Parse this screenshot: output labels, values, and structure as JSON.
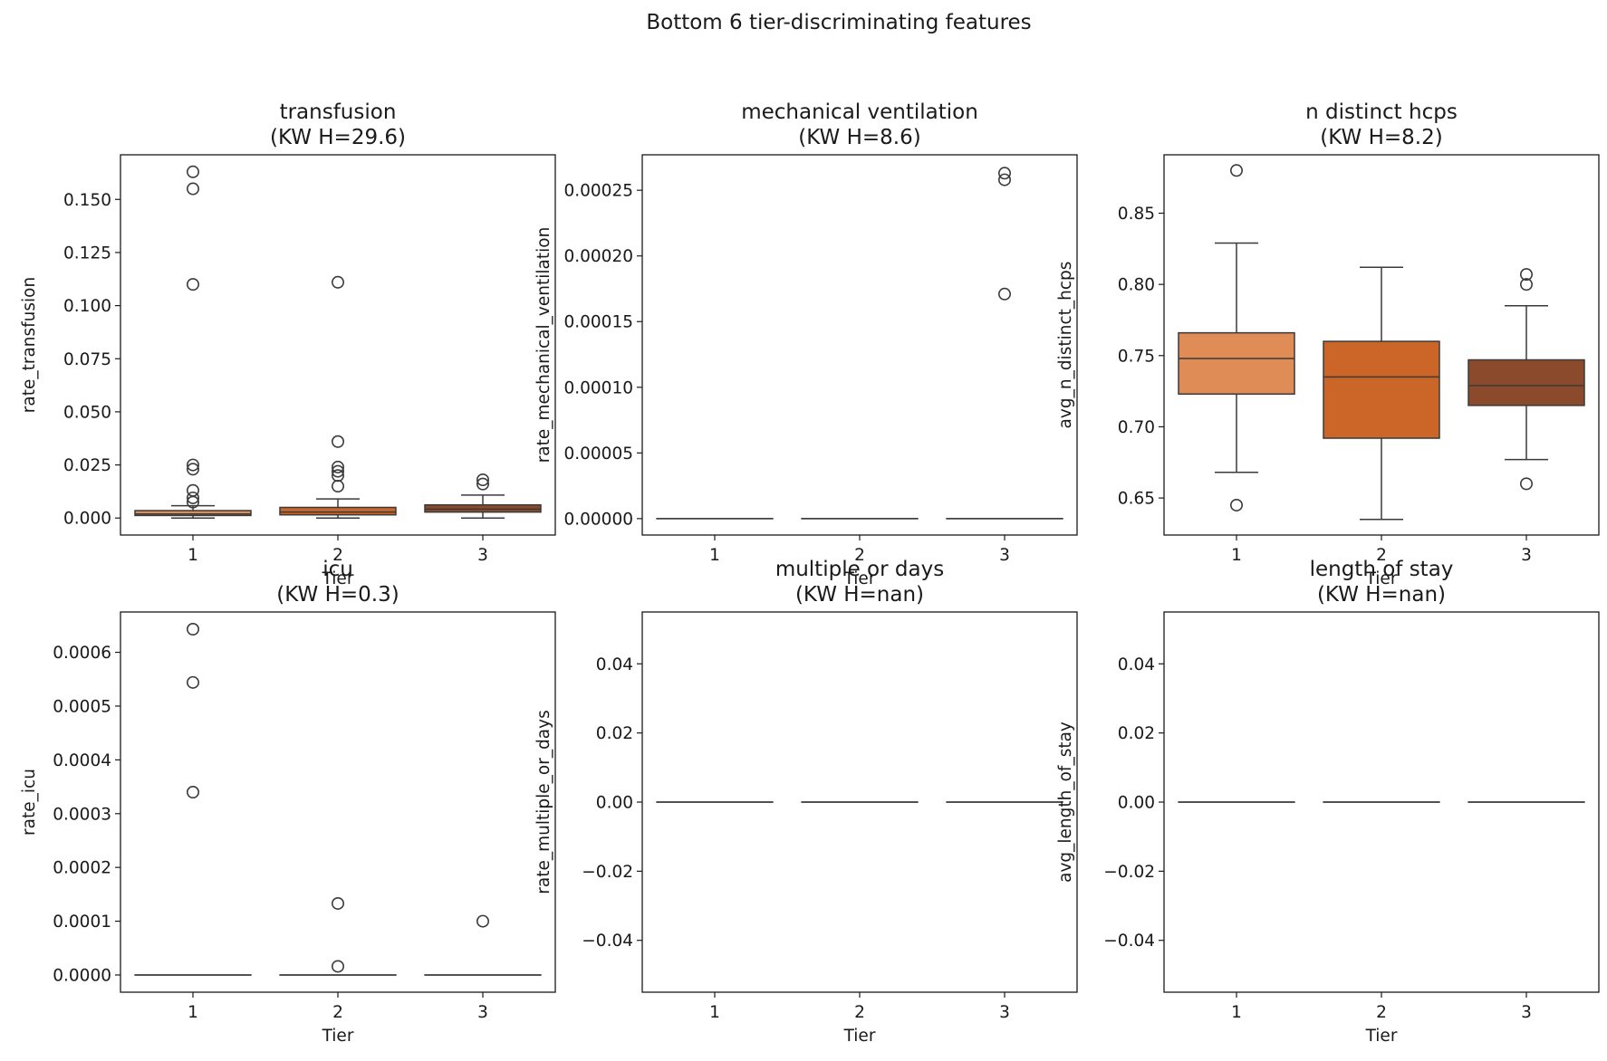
{
  "chart_data": {
    "suptitle": "Bottom 6 tier-discriminating features",
    "type": "boxplot",
    "colors": {
      "tier1": "#e08c56",
      "tier2": "#cc6628",
      "tier3": "#8b4a2b",
      "edge": "#3a3a3a",
      "axis": "#1a1a1a"
    },
    "panels": [
      {
        "title": "transfusion",
        "subtitle": "(KW H=29.6)",
        "xlabel": "Tier",
        "ylabel": "rate_transfusion",
        "ylim": [
          -0.008,
          0.171
        ],
        "yticks": [
          0.0,
          0.025,
          0.05,
          0.075,
          0.1,
          0.125,
          0.15
        ],
        "ytick_labels": [
          "0.000",
          "0.025",
          "0.050",
          "0.075",
          "0.100",
          "0.125",
          "0.150"
        ],
        "categories": [
          "1",
          "2",
          "3"
        ],
        "boxes": [
          {
            "tier": "1",
            "q1": 0.0012,
            "median": 0.0019,
            "q3": 0.0035,
            "whisker_low": 0.0,
            "whisker_high": 0.0058,
            "outliers": [
              0.163,
              0.155,
              0.11,
              0.025,
              0.023,
              0.013,
              0.0095,
              0.0075
            ]
          },
          {
            "tier": "2",
            "q1": 0.0015,
            "median": 0.0028,
            "q3": 0.005,
            "whisker_low": 0.0,
            "whisker_high": 0.009,
            "outliers": [
              0.111,
              0.036,
              0.024,
              0.022,
              0.02,
              0.015
            ]
          },
          {
            "tier": "3",
            "q1": 0.0028,
            "median": 0.0042,
            "q3": 0.0062,
            "whisker_low": 0.0,
            "whisker_high": 0.0108,
            "outliers": [
              0.018,
              0.016
            ]
          }
        ]
      },
      {
        "title": "mechanical ventilation",
        "subtitle": "(KW H=8.6)",
        "xlabel": "Tier",
        "ylabel": "rate_mechanical_ventilation",
        "ylim": [
          -1.25e-05,
          0.000277
        ],
        "yticks": [
          0.0,
          5e-05,
          0.0001,
          0.00015,
          0.0002,
          0.00025
        ],
        "ytick_labels": [
          "0.00000",
          "0.00005",
          "0.00010",
          "0.00015",
          "0.00020",
          "0.00025"
        ],
        "categories": [
          "1",
          "2",
          "3"
        ],
        "boxes": [
          {
            "tier": "1",
            "q1": 0,
            "median": 0,
            "q3": 0,
            "whisker_low": 0,
            "whisker_high": 0,
            "outliers": []
          },
          {
            "tier": "2",
            "q1": 0,
            "median": 0,
            "q3": 0,
            "whisker_low": 0,
            "whisker_high": 0,
            "outliers": []
          },
          {
            "tier": "3",
            "q1": 0,
            "median": 0,
            "q3": 0,
            "whisker_low": 0,
            "whisker_high": 0,
            "outliers": [
              0.000263,
              0.000258,
              0.000171
            ]
          }
        ]
      },
      {
        "title": "n distinct hcps",
        "subtitle": "(KW H=8.2)",
        "xlabel": "Tier",
        "ylabel": "avg_n_distinct_hcps",
        "ylim": [
          0.624,
          0.891
        ],
        "yticks": [
          0.65,
          0.7,
          0.75,
          0.8,
          0.85
        ],
        "ytick_labels": [
          "0.65",
          "0.70",
          "0.75",
          "0.80",
          "0.85"
        ],
        "categories": [
          "1",
          "2",
          "3"
        ],
        "boxes": [
          {
            "tier": "1",
            "q1": 0.723,
            "median": 0.748,
            "q3": 0.766,
            "whisker_low": 0.668,
            "whisker_high": 0.829,
            "outliers": [
              0.88,
              0.645
            ]
          },
          {
            "tier": "2",
            "q1": 0.692,
            "median": 0.735,
            "q3": 0.76,
            "whisker_low": 0.635,
            "whisker_high": 0.812,
            "outliers": []
          },
          {
            "tier": "3",
            "q1": 0.715,
            "median": 0.729,
            "q3": 0.747,
            "whisker_low": 0.677,
            "whisker_high": 0.785,
            "outliers": [
              0.807,
              0.8,
              0.66
            ]
          }
        ]
      },
      {
        "title": "icu",
        "subtitle": "(KW H=0.3)",
        "xlabel": "Tier",
        "ylabel": "rate_icu",
        "ylim": [
          -3.2e-05,
          0.000675
        ],
        "yticks": [
          0.0,
          0.0001,
          0.0002,
          0.0003,
          0.0004,
          0.0005,
          0.0006
        ],
        "ytick_labels": [
          "0.0000",
          "0.0001",
          "0.0002",
          "0.0003",
          "0.0004",
          "0.0005",
          "0.0006"
        ],
        "categories": [
          "1",
          "2",
          "3"
        ],
        "boxes": [
          {
            "tier": "1",
            "q1": 0,
            "median": 0,
            "q3": 0,
            "whisker_low": 0,
            "whisker_high": 0,
            "outliers": [
              0.000643,
              0.000544,
              0.00034
            ]
          },
          {
            "tier": "2",
            "q1": 0,
            "median": 0,
            "q3": 0,
            "whisker_low": 0,
            "whisker_high": 0,
            "outliers": [
              0.000133,
              1.6e-05
            ]
          },
          {
            "tier": "3",
            "q1": 0,
            "median": 0,
            "q3": 0,
            "whisker_low": 0,
            "whisker_high": 0,
            "outliers": [
              0.0001
            ]
          }
        ]
      },
      {
        "title": "multiple or days",
        "subtitle": "(KW H=nan)",
        "xlabel": "Tier",
        "ylabel": "rate_multiple_or_days",
        "ylim": [
          -0.055,
          0.055
        ],
        "yticks": [
          -0.04,
          -0.02,
          0.0,
          0.02,
          0.04
        ],
        "ytick_labels": [
          "−0.04",
          "−0.02",
          "0.00",
          "0.02",
          "0.04"
        ],
        "categories": [
          "1",
          "2",
          "3"
        ],
        "boxes": [
          {
            "tier": "1",
            "q1": 0,
            "median": 0,
            "q3": 0,
            "whisker_low": 0,
            "whisker_high": 0,
            "outliers": []
          },
          {
            "tier": "2",
            "q1": 0,
            "median": 0,
            "q3": 0,
            "whisker_low": 0,
            "whisker_high": 0,
            "outliers": []
          },
          {
            "tier": "3",
            "q1": 0,
            "median": 0,
            "q3": 0,
            "whisker_low": 0,
            "whisker_high": 0,
            "outliers": []
          }
        ]
      },
      {
        "title": "length of stay",
        "subtitle": "(KW H=nan)",
        "xlabel": "Tier",
        "ylabel": "avg_length_of_stay",
        "ylim": [
          -0.055,
          0.055
        ],
        "yticks": [
          -0.04,
          -0.02,
          0.0,
          0.02,
          0.04
        ],
        "ytick_labels": [
          "−0.04",
          "−0.02",
          "0.00",
          "0.02",
          "0.04"
        ],
        "categories": [
          "1",
          "2",
          "3"
        ],
        "boxes": [
          {
            "tier": "1",
            "q1": 0,
            "median": 0,
            "q3": 0,
            "whisker_low": 0,
            "whisker_high": 0,
            "outliers": []
          },
          {
            "tier": "2",
            "q1": 0,
            "median": 0,
            "q3": 0,
            "whisker_low": 0,
            "whisker_high": 0,
            "outliers": []
          },
          {
            "tier": "3",
            "q1": 0,
            "median": 0,
            "q3": 0,
            "whisker_low": 0,
            "whisker_high": 0,
            "outliers": []
          }
        ]
      }
    ]
  }
}
